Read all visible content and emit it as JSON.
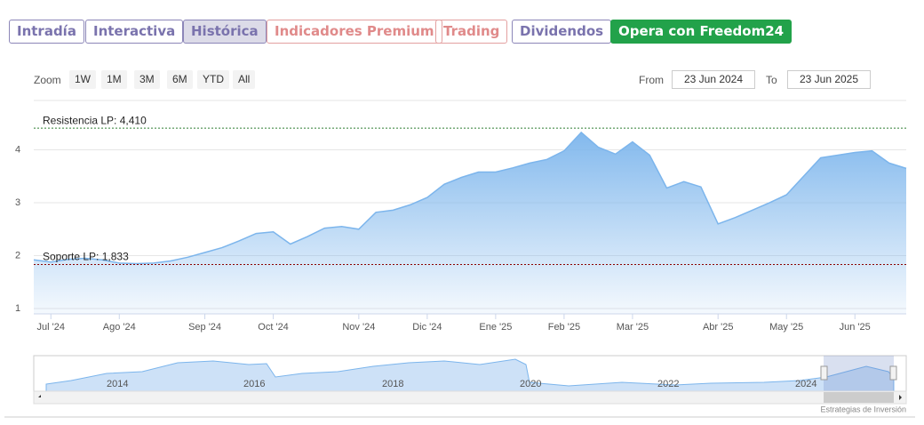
{
  "tabs": [
    "Intradía",
    "Interactiva",
    "Histórica",
    "Indicadores Premium",
    "Trading",
    "Dividendos",
    "Opera con Freedom24"
  ],
  "zoom": {
    "label": "Zoom",
    "buttons": [
      "1W",
      "1M",
      "3M",
      "6M",
      "YTD",
      "All"
    ]
  },
  "range": {
    "from_label": "From",
    "from": "23 Jun 2024",
    "to_label": "To",
    "to": "23 Jun 2025"
  },
  "navigator": {
    "years": [
      "2014",
      "2016",
      "2018",
      "2020",
      "2022",
      "2024"
    ]
  },
  "credit": "Estrategias de Inversión",
  "chart_data": {
    "type": "area",
    "categories": [
      null,
      "Jul '24",
      null,
      null,
      null,
      "Ago '24",
      null,
      null,
      null,
      null,
      "Sep '24",
      null,
      null,
      null,
      "Oct '24",
      null,
      null,
      null,
      null,
      "Nov '24",
      null,
      null,
      null,
      "Dic '24",
      null,
      null,
      null,
      "Ene '25",
      null,
      null,
      null,
      "Feb '25",
      null,
      null,
      null,
      "Mar '25",
      null,
      null,
      null,
      null,
      "Abr '25",
      null,
      null,
      null,
      "May '25",
      null,
      null,
      null,
      "Jun '25",
      null,
      null,
      null
    ],
    "values": [
      1.92,
      1.88,
      1.93,
      1.95,
      1.92,
      1.86,
      1.85,
      1.86,
      1.9,
      1.97,
      2.06,
      2.15,
      2.28,
      2.42,
      2.45,
      2.22,
      2.36,
      2.52,
      2.55,
      2.5,
      2.82,
      2.86,
      2.96,
      3.1,
      3.35,
      3.48,
      3.58,
      3.58,
      3.66,
      3.75,
      3.82,
      3.98,
      4.33,
      4.05,
      3.92,
      4.15,
      3.9,
      3.28,
      3.4,
      3.3,
      2.6,
      2.72,
      2.86,
      3.0,
      3.15,
      3.5,
      3.85,
      3.9,
      3.95,
      3.98,
      3.75,
      3.65
    ],
    "color": "#7cb5ec",
    "ylim": [
      0.9,
      4.9
    ],
    "yticks": [
      1,
      2,
      3,
      4
    ],
    "grid": true,
    "annotations": [
      {
        "value": 4.41,
        "label": "Resistencia LP: 4,410",
        "color": "#2e7d32"
      },
      {
        "value": 1.833,
        "label": "Soporte LP: 1,833",
        "color": "#8b0000"
      }
    ]
  }
}
